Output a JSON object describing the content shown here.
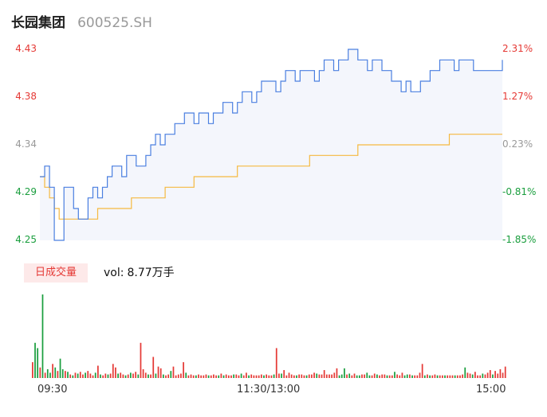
{
  "header": {
    "name": "长园集团",
    "code": "600525.SH"
  },
  "colors": {
    "price": "#4a7fe0",
    "avg": "#f5b940",
    "up": "#e53935",
    "down": "#1a9e3e",
    "neutral": "#999999",
    "fill": "#f4f6fc"
  },
  "chart_data": {
    "type": "line",
    "price_axis": {
      "ylim": [
        4.25,
        4.43
      ],
      "ticks": [
        "4.43",
        "4.38",
        "4.34",
        "4.29",
        "4.25"
      ]
    },
    "pct_axis": {
      "ticks": [
        "2.31%",
        "1.27%",
        "0.23%",
        "-0.81%",
        "-1.85%"
      ]
    },
    "x_ticks": [
      "09:30",
      "11:30/13:00",
      "15:00"
    ],
    "series": [
      {
        "key": "price",
        "values": [
          4.31,
          4.32,
          4.3,
          4.25,
          4.25,
          4.3,
          4.3,
          4.28,
          4.27,
          4.27,
          4.29,
          4.3,
          4.29,
          4.3,
          4.31,
          4.32,
          4.32,
          4.31,
          4.33,
          4.33,
          4.32,
          4.32,
          4.33,
          4.34,
          4.35,
          4.34,
          4.35,
          4.35,
          4.36,
          4.36,
          4.37,
          4.37,
          4.36,
          4.37,
          4.37,
          4.36,
          4.37,
          4.37,
          4.38,
          4.38,
          4.37,
          4.38,
          4.39,
          4.39,
          4.38,
          4.39,
          4.4,
          4.4,
          4.4,
          4.39,
          4.4,
          4.41,
          4.41,
          4.4,
          4.41,
          4.41,
          4.41,
          4.4,
          4.41,
          4.42,
          4.42,
          4.41,
          4.42,
          4.42,
          4.43,
          4.43,
          4.42,
          4.42,
          4.41,
          4.42,
          4.42,
          4.41,
          4.41,
          4.4,
          4.4,
          4.39,
          4.4,
          4.39,
          4.39,
          4.4,
          4.4,
          4.41,
          4.41,
          4.42,
          4.42,
          4.42,
          4.41,
          4.42,
          4.42,
          4.42,
          4.41,
          4.41,
          4.41,
          4.41,
          4.41,
          4.41,
          4.42
        ]
      },
      {
        "key": "avg",
        "values": [
          4.31,
          4.3,
          4.29,
          4.28,
          4.27,
          4.27,
          4.27,
          4.27,
          4.27,
          4.27,
          4.27,
          4.27,
          4.28,
          4.28,
          4.28,
          4.28,
          4.28,
          4.28,
          4.28,
          4.29,
          4.29,
          4.29,
          4.29,
          4.29,
          4.29,
          4.29,
          4.3,
          4.3,
          4.3,
          4.3,
          4.3,
          4.3,
          4.31,
          4.31,
          4.31,
          4.31,
          4.31,
          4.31,
          4.31,
          4.31,
          4.31,
          4.32,
          4.32,
          4.32,
          4.32,
          4.32,
          4.32,
          4.32,
          4.32,
          4.32,
          4.32,
          4.32,
          4.32,
          4.32,
          4.32,
          4.32,
          4.33,
          4.33,
          4.33,
          4.33,
          4.33,
          4.33,
          4.33,
          4.33,
          4.33,
          4.33,
          4.34,
          4.34,
          4.34,
          4.34,
          4.34,
          4.34,
          4.34,
          4.34,
          4.34,
          4.34,
          4.34,
          4.34,
          4.34,
          4.34,
          4.34,
          4.34,
          4.34,
          4.34,
          4.34,
          4.35,
          4.35,
          4.35,
          4.35,
          4.35,
          4.35,
          4.35,
          4.35,
          4.35,
          4.35,
          4.35,
          4.35
        ]
      }
    ],
    "volume": {
      "label": "日成交量",
      "vol_label": "vol:",
      "vol_value": "8.77万手",
      "bars": [
        [
          "u",
          18
        ],
        [
          "d",
          40
        ],
        [
          "d",
          34
        ],
        [
          "u",
          12
        ],
        [
          "d",
          95
        ],
        [
          "u",
          6
        ],
        [
          "d",
          10
        ],
        [
          "d",
          6
        ],
        [
          "u",
          16
        ],
        [
          "d",
          12
        ],
        [
          "u",
          8
        ],
        [
          "d",
          22
        ],
        [
          "d",
          10
        ],
        [
          "u",
          8
        ],
        [
          "d",
          7
        ],
        [
          "u",
          4
        ],
        [
          "d",
          3
        ],
        [
          "u",
          6
        ],
        [
          "d",
          5
        ],
        [
          "u",
          7
        ],
        [
          "u",
          4
        ],
        [
          "d",
          6
        ],
        [
          "u",
          8
        ],
        [
          "u",
          5
        ],
        [
          "u",
          3
        ],
        [
          "d",
          6
        ],
        [
          "u",
          14
        ],
        [
          "d",
          4
        ],
        [
          "u",
          3
        ],
        [
          "u",
          5
        ],
        [
          "d",
          4
        ],
        [
          "u",
          5
        ],
        [
          "u",
          16
        ],
        [
          "u",
          12
        ],
        [
          "d",
          5
        ],
        [
          "u",
          6
        ],
        [
          "u",
          4
        ],
        [
          "d",
          3
        ],
        [
          "u",
          4
        ],
        [
          "d",
          6
        ],
        [
          "u",
          5
        ],
        [
          "u",
          7
        ],
        [
          "d",
          4
        ],
        [
          "u",
          40
        ],
        [
          "u",
          10
        ],
        [
          "u",
          6
        ],
        [
          "d",
          4
        ],
        [
          "u",
          4
        ],
        [
          "u",
          24
        ],
        [
          "d",
          5
        ],
        [
          "u",
          13
        ],
        [
          "u",
          11
        ],
        [
          "d",
          4
        ],
        [
          "u",
          3
        ],
        [
          "u",
          4
        ],
        [
          "d",
          8
        ],
        [
          "u",
          13
        ],
        [
          "u",
          3
        ],
        [
          "u",
          4
        ],
        [
          "u",
          5
        ],
        [
          "u",
          18
        ],
        [
          "d",
          6
        ],
        [
          "u",
          3
        ],
        [
          "u",
          4
        ],
        [
          "u",
          3
        ],
        [
          "d",
          3
        ],
        [
          "u",
          4
        ],
        [
          "u",
          3
        ],
        [
          "u",
          3
        ],
        [
          "u",
          4
        ],
        [
          "d",
          3
        ],
        [
          "u",
          3
        ],
        [
          "u",
          4
        ],
        [
          "u",
          3
        ],
        [
          "d",
          3
        ],
        [
          "u",
          5
        ],
        [
          "d",
          3
        ],
        [
          "u",
          4
        ],
        [
          "u",
          3
        ],
        [
          "u",
          3
        ],
        [
          "d",
          4
        ],
        [
          "u",
          4
        ],
        [
          "u",
          3
        ],
        [
          "d",
          5
        ],
        [
          "u",
          3
        ],
        [
          "u",
          6
        ],
        [
          "d",
          3
        ],
        [
          "u",
          4
        ],
        [
          "u",
          3
        ],
        [
          "u",
          3
        ],
        [
          "u",
          3
        ],
        [
          "u",
          4
        ],
        [
          "d",
          3
        ],
        [
          "u",
          4
        ],
        [
          "u",
          3
        ],
        [
          "u",
          3
        ],
        [
          "d",
          4
        ],
        [
          "u",
          34
        ],
        [
          "u",
          5
        ],
        [
          "d",
          5
        ],
        [
          "u",
          9
        ],
        [
          "u",
          3
        ],
        [
          "u",
          6
        ],
        [
          "u",
          4
        ],
        [
          "u",
          3
        ],
        [
          "d",
          3
        ],
        [
          "u",
          4
        ],
        [
          "u",
          4
        ],
        [
          "u",
          3
        ],
        [
          "d",
          3
        ],
        [
          "u",
          4
        ],
        [
          "u",
          4
        ],
        [
          "u",
          6
        ],
        [
          "d",
          5
        ],
        [
          "u",
          4
        ],
        [
          "u",
          4
        ],
        [
          "u",
          9
        ],
        [
          "u",
          4
        ],
        [
          "u",
          4
        ],
        [
          "u",
          4
        ],
        [
          "u",
          6
        ],
        [
          "u",
          11
        ],
        [
          "d",
          3
        ],
        [
          "d",
          4
        ],
        [
          "d",
          11
        ],
        [
          "u",
          4
        ],
        [
          "d",
          5
        ],
        [
          "u",
          3
        ],
        [
          "u",
          5
        ],
        [
          "d",
          3
        ],
        [
          "d",
          3
        ],
        [
          "u",
          4
        ],
        [
          "u",
          4
        ],
        [
          "d",
          6
        ],
        [
          "d",
          3
        ],
        [
          "u",
          3
        ],
        [
          "u",
          5
        ],
        [
          "d",
          4
        ],
        [
          "u",
          3
        ],
        [
          "u",
          4
        ],
        [
          "u",
          4
        ],
        [
          "d",
          3
        ],
        [
          "u",
          3
        ],
        [
          "u",
          3
        ],
        [
          "d",
          7
        ],
        [
          "u",
          4
        ],
        [
          "u",
          3
        ],
        [
          "u",
          6
        ],
        [
          "d",
          3
        ],
        [
          "d",
          4
        ],
        [
          "u",
          4
        ],
        [
          "d",
          3
        ],
        [
          "u",
          3
        ],
        [
          "u",
          3
        ],
        [
          "u",
          6
        ],
        [
          "u",
          16
        ],
        [
          "d",
          3
        ],
        [
          "u",
          4
        ],
        [
          "d",
          3
        ],
        [
          "u",
          3
        ],
        [
          "u",
          4
        ],
        [
          "d",
          3
        ],
        [
          "u",
          3
        ],
        [
          "u",
          3
        ],
        [
          "d",
          3
        ],
        [
          "u",
          3
        ],
        [
          "u",
          3
        ],
        [
          "u",
          3
        ],
        [
          "d",
          3
        ],
        [
          "u",
          3
        ],
        [
          "u",
          3
        ],
        [
          "u",
          4
        ],
        [
          "d",
          12
        ],
        [
          "u",
          6
        ],
        [
          "u",
          5
        ],
        [
          "d",
          4
        ],
        [
          "u",
          7
        ],
        [
          "u",
          3
        ],
        [
          "u",
          3
        ],
        [
          "d",
          5
        ],
        [
          "u",
          4
        ],
        [
          "u",
          6
        ],
        [
          "u",
          9
        ],
        [
          "d",
          4
        ],
        [
          "u",
          8
        ],
        [
          "u",
          5
        ],
        [
          "u",
          10
        ],
        [
          "u",
          6
        ],
        [
          "u",
          13
        ]
      ]
    }
  }
}
